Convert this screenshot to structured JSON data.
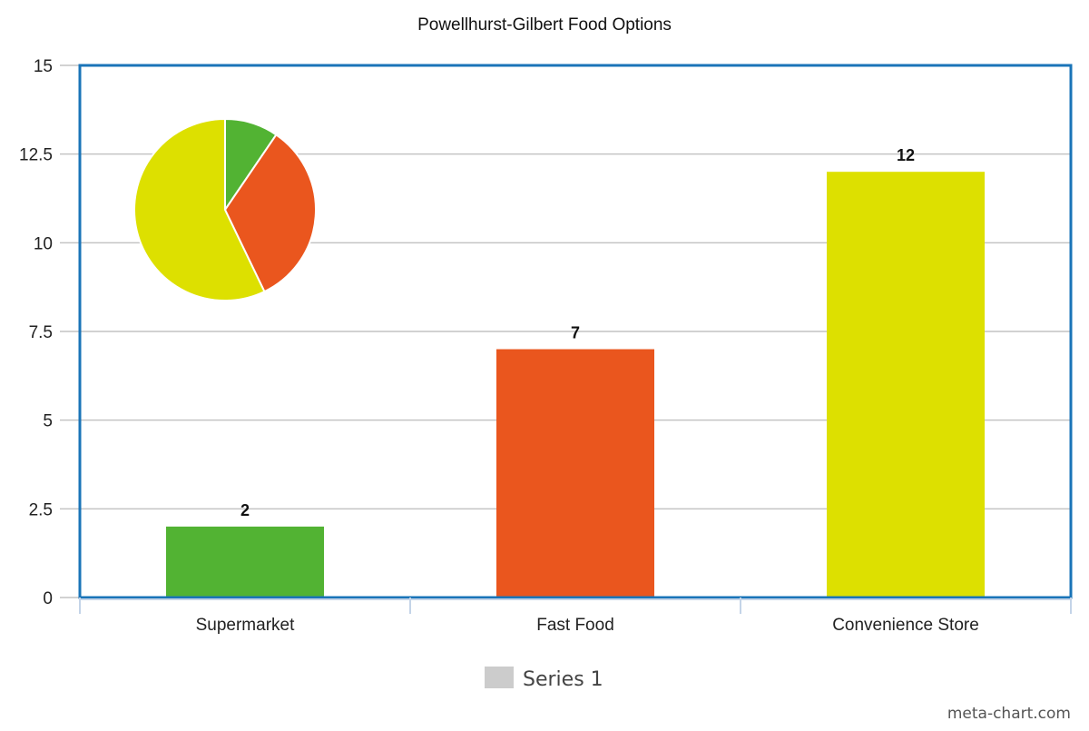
{
  "chart_data": {
    "type": "bar",
    "title": "Powellhurst-Gilbert Food Options",
    "categories": [
      "Supermarket",
      "Fast Food",
      "Convenience Store"
    ],
    "series": [
      {
        "name": "Series 1",
        "values": [
          2,
          7,
          12
        ],
        "colors": [
          "#52b333",
          "#ea561e",
          "#dde000"
        ]
      }
    ],
    "data_labels": [
      "2",
      "7",
      "12"
    ],
    "y_ticks": [
      "0",
      "2.5",
      "5",
      "7.5",
      "10",
      "12.5",
      "15"
    ],
    "y_tick_values": [
      0,
      2.5,
      5,
      7.5,
      10,
      12.5,
      15
    ],
    "ylim": [
      0,
      15
    ],
    "grid": true,
    "legend_position": "bottom",
    "inset": {
      "type": "pie",
      "values": [
        2,
        7,
        12
      ],
      "colors": [
        "#52b333",
        "#ea561e",
        "#dde000"
      ]
    },
    "plot_border_color": "#1a74b8",
    "legend_swatch_color": "#cccccc"
  },
  "watermark": "meta-chart.com"
}
